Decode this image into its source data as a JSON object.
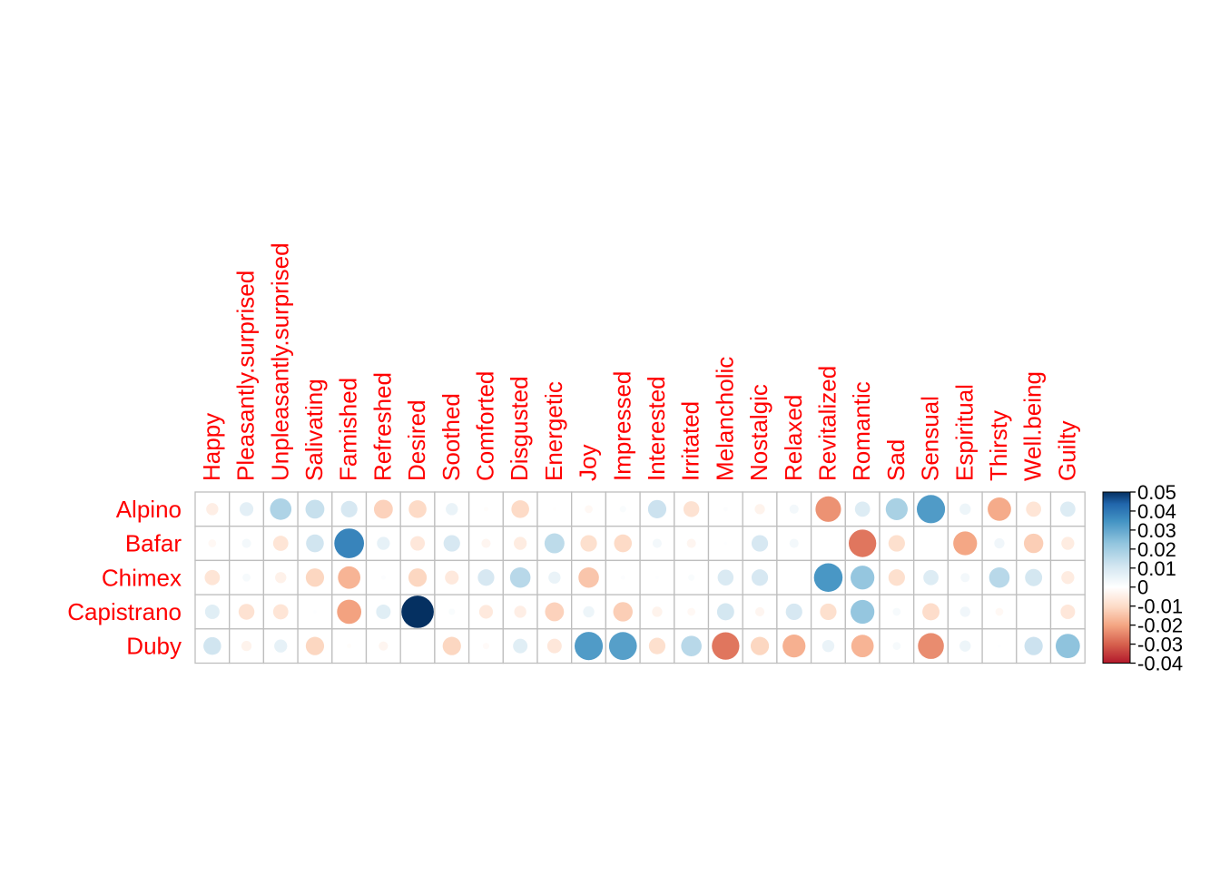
{
  "chart_data": {
    "type": "heatmap",
    "style": "circle correlation plot",
    "rows": [
      "Alpino",
      "Bafar",
      "Chimex",
      "Capistrano",
      "Duby"
    ],
    "columns": [
      "Happy",
      "Pleasantly.surprised",
      "Unpleasantly.surprised",
      "Salivating",
      "Famished",
      "Refreshed",
      "Desired",
      "Soothed",
      "Comforted",
      "Disgusted",
      "Energetic",
      "Joy",
      "Impressed",
      "Interested",
      "Irritated",
      "Melancholic",
      "Nostalgic",
      "Relaxed",
      "Revitalized",
      "Romantic",
      "Sad",
      "Sensual",
      "Espiritual",
      "Thirsty",
      "Well.being",
      "Guilty"
    ],
    "values": [
      [
        -0.007,
        0.009,
        0.022,
        0.017,
        0.013,
        -0.017,
        -0.015,
        0.007,
        -0.001,
        -0.015,
        -0.0005,
        -0.003,
        0.002,
        0.016,
        -0.012,
        0.001,
        -0.005,
        0.004,
        -0.031,
        0.011,
        0.023,
        0.038,
        0.006,
        -0.026,
        -0.011,
        0.011
      ],
      [
        -0.003,
        0.004,
        -0.011,
        0.015,
        0.042,
        0.008,
        -0.01,
        0.013,
        -0.004,
        -0.008,
        0.019,
        -0.013,
        -0.015,
        0.004,
        -0.004,
        0.0005,
        0.013,
        0.004,
        0.0,
        -0.036,
        -0.013,
        0.0,
        -0.027,
        0.005,
        -0.018,
        -0.008
      ],
      [
        -0.011,
        0.003,
        -0.006,
        -0.016,
        -0.024,
        0.001,
        -0.016,
        -0.009,
        0.013,
        0.02,
        0.007,
        -0.02,
        0.001,
        0.0005,
        0.002,
        0.012,
        0.013,
        0.0,
        0.039,
        0.027,
        -0.013,
        0.011,
        0.004,
        0.02,
        0.014,
        -0.008
      ],
      [
        0.01,
        -0.012,
        -0.011,
        0.0005,
        -0.028,
        0.01,
        0.05,
        0.002,
        -0.009,
        -0.007,
        -0.017,
        0.006,
        -0.018,
        -0.005,
        -0.003,
        0.014,
        -0.004,
        0.013,
        -0.013,
        0.027,
        0.003,
        -0.014,
        0.005,
        -0.003,
        0.0,
        -0.01
      ],
      [
        0.015,
        -0.005,
        0.008,
        -0.016,
        -0.001,
        -0.004,
        0.0,
        -0.016,
        -0.002,
        0.01,
        -0.01,
        0.038,
        0.037,
        -0.013,
        0.02,
        -0.036,
        -0.016,
        -0.025,
        0.007,
        -0.024,
        0.003,
        -0.032,
        0.006,
        0.0005,
        0.016,
        0.028
      ]
    ],
    "colorbar": {
      "ticks": [
        "0.05",
        "0.04",
        "0.03",
        "0.02",
        "0.01",
        "0",
        "-0.01",
        "-0.02",
        "-0.03",
        "-0.04"
      ],
      "range": [
        -0.04,
        0.05
      ]
    },
    "label_color": "#ff0000",
    "grid_color": "#bebebe"
  }
}
